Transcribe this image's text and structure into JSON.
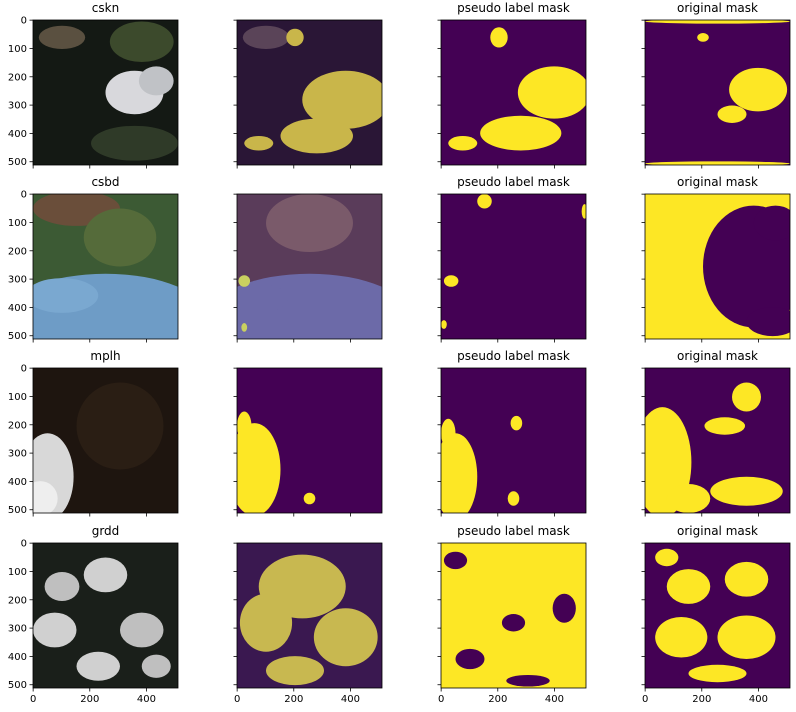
{
  "chart_data": [
    {
      "type": "image",
      "title": "cskn",
      "xlim": [
        -0.5,
        511.5
      ],
      "ylim": [
        511.5,
        -0.5
      ],
      "yticks": [
        0,
        100,
        200,
        300,
        400,
        500
      ]
    },
    {
      "type": "image",
      "xlim": [
        -0.5,
        511.5
      ],
      "ylim": [
        511.5,
        -0.5
      ]
    },
    {
      "type": "image",
      "title": "pseudo label mask",
      "xlim": [
        -0.5,
        511.5
      ],
      "ylim": [
        511.5,
        -0.5
      ]
    },
    {
      "type": "image",
      "title": "original mask",
      "xlim": [
        -0.5,
        511.5
      ],
      "ylim": [
        511.5,
        -0.5
      ]
    },
    {
      "type": "image",
      "title": "csbd",
      "xlim": [
        -0.5,
        511.5
      ],
      "ylim": [
        511.5,
        -0.5
      ],
      "yticks": [
        0,
        100,
        200,
        300,
        400,
        500
      ]
    },
    {
      "type": "image",
      "xlim": [
        -0.5,
        511.5
      ],
      "ylim": [
        511.5,
        -0.5
      ]
    },
    {
      "type": "image",
      "title": "pseudo label mask",
      "xlim": [
        -0.5,
        511.5
      ],
      "ylim": [
        511.5,
        -0.5
      ]
    },
    {
      "type": "image",
      "title": "original mask",
      "xlim": [
        -0.5,
        511.5
      ],
      "ylim": [
        511.5,
        -0.5
      ]
    },
    {
      "type": "image",
      "title": "mplh",
      "xlim": [
        -0.5,
        511.5
      ],
      "ylim": [
        511.5,
        -0.5
      ],
      "yticks": [
        0,
        100,
        200,
        300,
        400,
        500
      ]
    },
    {
      "type": "image",
      "xlim": [
        -0.5,
        511.5
      ],
      "ylim": [
        511.5,
        -0.5
      ]
    },
    {
      "type": "image",
      "title": "pseudo label mask",
      "xlim": [
        -0.5,
        511.5
      ],
      "ylim": [
        511.5,
        -0.5
      ]
    },
    {
      "type": "image",
      "title": "original mask",
      "xlim": [
        -0.5,
        511.5
      ],
      "ylim": [
        511.5,
        -0.5
      ]
    },
    {
      "type": "image",
      "title": "grdd",
      "xlim": [
        -0.5,
        511.5
      ],
      "ylim": [
        511.5,
        -0.5
      ],
      "xticks": [
        0,
        200,
        400
      ],
      "yticks": [
        0,
        100,
        200,
        300,
        400,
        500
      ]
    },
    {
      "type": "image",
      "xlim": [
        -0.5,
        511.5
      ],
      "ylim": [
        511.5,
        -0.5
      ],
      "xticks": [
        0,
        200,
        400
      ]
    },
    {
      "type": "image",
      "title": "pseudo label mask",
      "xlim": [
        -0.5,
        511.5
      ],
      "ylim": [
        511.5,
        -0.5
      ],
      "xticks": [
        0,
        200,
        400
      ]
    },
    {
      "type": "image",
      "title": "original mask",
      "xlim": [
        -0.5,
        511.5
      ],
      "ylim": [
        511.5,
        -0.5
      ],
      "xticks": [
        0,
        200,
        400
      ]
    }
  ]
}
